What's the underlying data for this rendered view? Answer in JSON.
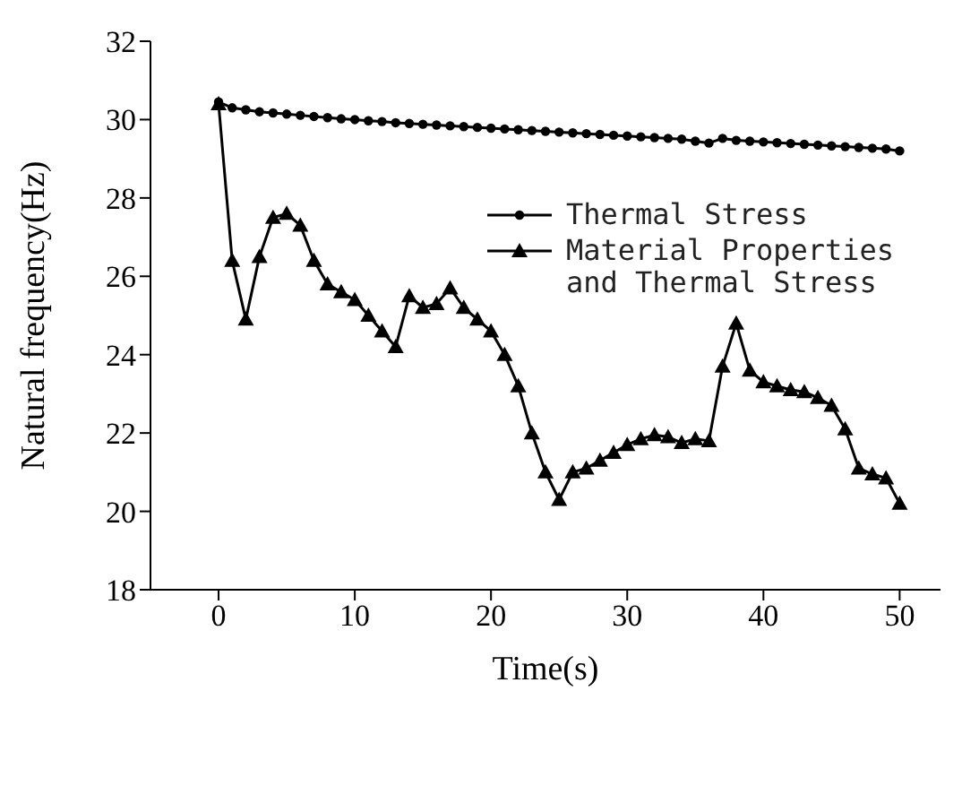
{
  "chart_data": {
    "type": "line",
    "xlabel": "Time(s)",
    "ylabel": "Natural frequency(Hz)",
    "x": [
      0,
      1,
      2,
      3,
      4,
      5,
      6,
      7,
      8,
      9,
      10,
      11,
      12,
      13,
      14,
      15,
      16,
      17,
      18,
      19,
      20,
      21,
      22,
      23,
      24,
      25,
      26,
      27,
      28,
      29,
      30,
      31,
      32,
      33,
      34,
      35,
      36,
      37,
      38,
      39,
      40,
      41,
      42,
      43,
      44,
      45,
      46,
      47,
      48,
      49,
      50
    ],
    "xlim": [
      -5,
      53
    ],
    "xticks": [
      0,
      10,
      20,
      30,
      40,
      50
    ],
    "ylim": [
      18,
      32
    ],
    "yticks": [
      18,
      20,
      22,
      24,
      26,
      28,
      30,
      32
    ],
    "grid": false,
    "legend": "top right",
    "line_style": "solid",
    "series": [
      {
        "name": "Thermal Stress",
        "color": "#000000",
        "marker": "circle",
        "values": [
          30.45,
          30.3,
          30.25,
          30.2,
          30.17,
          30.14,
          30.11,
          30.08,
          30.05,
          30.02,
          30.0,
          29.97,
          29.95,
          29.92,
          29.9,
          29.88,
          29.86,
          29.84,
          29.82,
          29.8,
          29.78,
          29.76,
          29.74,
          29.72,
          29.7,
          29.68,
          29.66,
          29.64,
          29.62,
          29.6,
          29.58,
          29.56,
          29.54,
          29.52,
          29.5,
          29.45,
          29.4,
          29.52,
          29.47,
          29.45,
          29.43,
          29.41,
          29.39,
          29.37,
          29.35,
          29.33,
          29.31,
          29.29,
          29.27,
          29.25,
          29.2
        ]
      },
      {
        "name": "Material Properties and Thermal Stress",
        "color": "#000000",
        "marker": "triangle",
        "values": [
          30.4,
          26.4,
          24.9,
          26.5,
          27.5,
          27.6,
          27.3,
          26.4,
          25.8,
          25.6,
          25.4,
          25.0,
          24.6,
          24.2,
          25.5,
          25.2,
          25.3,
          25.7,
          25.2,
          24.9,
          24.6,
          24.0,
          23.2,
          22.0,
          21.0,
          20.3,
          21.0,
          21.1,
          21.3,
          21.5,
          21.7,
          21.85,
          21.95,
          21.9,
          21.75,
          21.85,
          21.8,
          23.7,
          24.8,
          23.6,
          23.3,
          23.2,
          23.1,
          23.05,
          22.9,
          22.7,
          22.1,
          21.1,
          20.95,
          20.85,
          20.2
        ]
      }
    ]
  }
}
